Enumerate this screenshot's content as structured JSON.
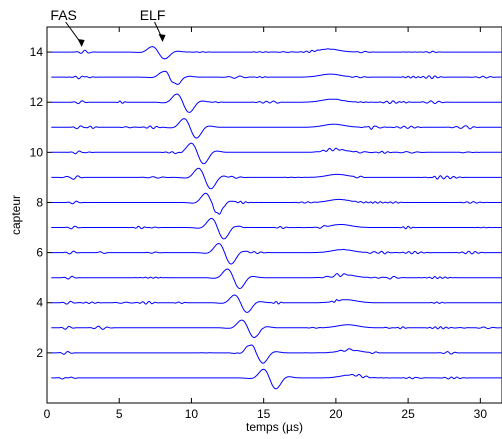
{
  "chart_data": {
    "type": "line",
    "title": "",
    "xlabel": "temps (µs)",
    "ylabel": "capteur",
    "xlim": [
      0,
      31.5
    ],
    "ylim": [
      0,
      15
    ],
    "x_ticks": [
      0,
      5,
      10,
      15,
      20,
      25,
      30
    ],
    "y_ticks": [
      2,
      4,
      6,
      8,
      10,
      12,
      14
    ],
    "grid": false,
    "line_color": "#0000ff",
    "trace_count": 14,
    "trace_scale": 0.55,
    "annotations": [
      {
        "label": "FAS",
        "x": 2.4,
        "y": 14.2
      },
      {
        "label": "ELF",
        "x": 8.0,
        "y": 14.4
      }
    ],
    "series": [
      {
        "sensor": 1,
        "arrival_us": 15.5,
        "amplitude": 0.95,
        "polarity": -1
      },
      {
        "sensor": 2,
        "arrival_us": 14.6,
        "amplitude": 0.9,
        "polarity": -1
      },
      {
        "sensor": 3,
        "arrival_us": 14.0,
        "amplitude": 0.85,
        "polarity": -1
      },
      {
        "sensor": 4,
        "arrival_us": 13.5,
        "amplitude": 0.85,
        "polarity": -1
      },
      {
        "sensor": 5,
        "arrival_us": 13.0,
        "amplitude": 0.95,
        "polarity": -1
      },
      {
        "sensor": 6,
        "arrival_us": 12.4,
        "amplitude": 1.0,
        "polarity": -1
      },
      {
        "sensor": 7,
        "arrival_us": 11.9,
        "amplitude": 1.0,
        "polarity": -1
      },
      {
        "sensor": 8,
        "arrival_us": 11.5,
        "amplitude": 1.0,
        "polarity": -1
      },
      {
        "sensor": 9,
        "arrival_us": 11.0,
        "amplitude": 1.0,
        "polarity": -1
      },
      {
        "sensor": 10,
        "arrival_us": 10.5,
        "amplitude": 1.0,
        "polarity": -1
      },
      {
        "sensor": 11,
        "arrival_us": 10.0,
        "amplitude": 0.95,
        "polarity": -1
      },
      {
        "sensor": 12,
        "arrival_us": 9.5,
        "amplitude": 0.9,
        "polarity": -1
      },
      {
        "sensor": 13,
        "arrival_us": 8.6,
        "amplitude": 0.65,
        "polarity": -1
      },
      {
        "sensor": 14,
        "arrival_us": 7.8,
        "amplitude": 0.6,
        "polarity": -1
      }
    ]
  }
}
